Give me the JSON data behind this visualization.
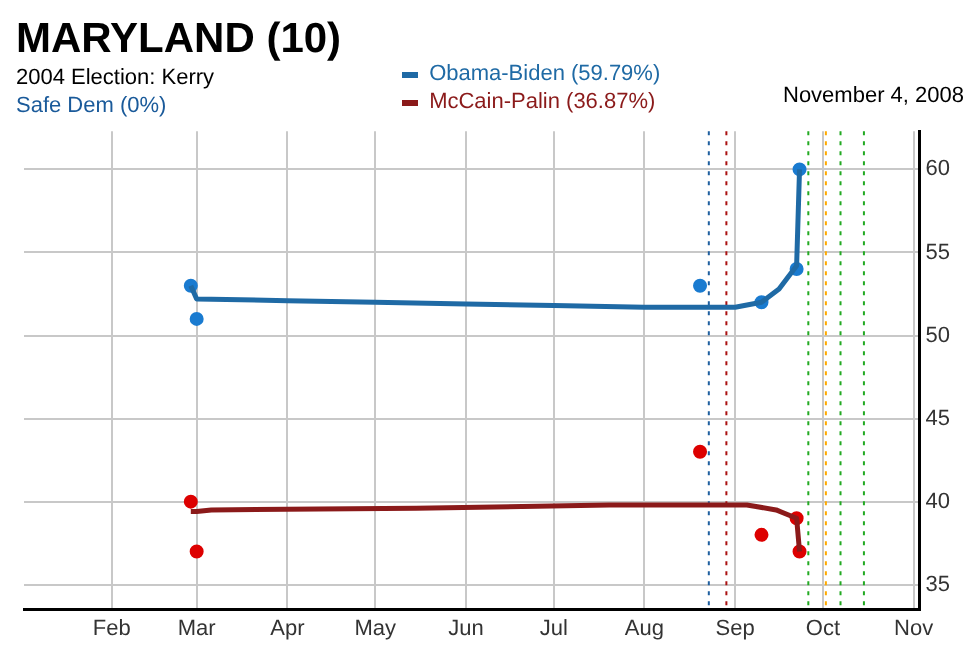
{
  "chart_data": {
    "type": "line",
    "title": "MARYLAND (10)",
    "subtitle": "2004 Election: Kerry",
    "annotations": [
      "Safe Dem (0%)",
      "November 4, 2008"
    ],
    "legend": "top",
    "grid": true,
    "marker": "none",
    "line_style": "solid",
    "xlim": [
      "2008-01-02",
      "2008-11-03"
    ],
    "xticks": [
      {
        "value": "2008-02-01",
        "label": "Feb"
      },
      {
        "value": "2008-03-01",
        "label": "Mar"
      },
      {
        "value": "2008-04-01",
        "label": "Apr"
      },
      {
        "value": "2008-05-01",
        "label": "May"
      },
      {
        "value": "2008-06-01",
        "label": "Jun"
      },
      {
        "value": "2008-07-01",
        "label": "Jul"
      },
      {
        "value": "2008-08-01",
        "label": "Aug"
      },
      {
        "value": "2008-09-01",
        "label": "Sep"
      },
      {
        "value": "2008-10-01",
        "label": "Oct"
      },
      {
        "value": "2008-11-01",
        "label": "Nov"
      }
    ],
    "ylim": [
      33.5,
      62.3
    ],
    "yticks": [
      35,
      40,
      45,
      50,
      55,
      60
    ],
    "series": [
      {
        "name": "Obama-Biden (59.79%)",
        "color": "#1f6aa5",
        "x": [
          "2008-02-28",
          "2008-03-01",
          "2008-04-01",
          "2008-05-01",
          "2008-06-01",
          "2008-07-01",
          "2008-08-01",
          "2008-09-01",
          "2008-09-10",
          "2008-09-16",
          "2008-09-22",
          "2008-09-23"
        ],
        "values": [
          53,
          52.2,
          52.1,
          52,
          51.9,
          51.8,
          51.7,
          51.7,
          52,
          52.8,
          54.2,
          60
        ]
      },
      {
        "name": "McCain-Palin (36.87%)",
        "color": "#8b1a1a",
        "x": [
          "2008-02-28",
          "2008-03-01",
          "2008-03-06",
          "2008-05-15",
          "2008-07-20",
          "2008-09-05",
          "2008-09-15",
          "2008-09-22",
          "2008-09-23"
        ],
        "values": [
          39.4,
          39.4,
          39.5,
          39.6,
          39.8,
          39.8,
          39.5,
          39,
          37
        ]
      },
      {
        "type": "scatter",
        "marker": "circle",
        "color": "#1a7bd0",
        "x": [
          "2008-02-28",
          "2008-03-01",
          "2008-08-20",
          "2008-09-10",
          "2008-09-22",
          "2008-09-23"
        ],
        "values": [
          53,
          51,
          53,
          52,
          54,
          60
        ]
      },
      {
        "type": "scatter",
        "marker": "circle",
        "color": "#dd0000",
        "x": [
          "2008-02-28",
          "2008-03-01",
          "2008-08-20",
          "2008-09-10",
          "2008-09-22",
          "2008-09-23"
        ],
        "values": [
          40,
          37,
          43,
          38,
          39,
          37
        ]
      }
    ],
    "ref_lines": [
      {
        "axis": "x",
        "value": "2008-08-23",
        "color": "#1f5f9f",
        "line_style": "dotted"
      },
      {
        "axis": "x",
        "value": "2008-08-29",
        "color": "#aa1111",
        "line_style": "dotted"
      },
      {
        "axis": "x",
        "value": "2008-09-26",
        "color": "#22aa22",
        "line_style": "dotted"
      },
      {
        "axis": "x",
        "value": "2008-10-02",
        "color": "#ffaa00",
        "line_style": "dotted"
      },
      {
        "axis": "x",
        "value": "2008-10-07",
        "color": "#22aa22",
        "line_style": "dotted"
      },
      {
        "axis": "x",
        "value": "2008-10-15",
        "color": "#22aa22",
        "line_style": "dotted"
      }
    ]
  }
}
